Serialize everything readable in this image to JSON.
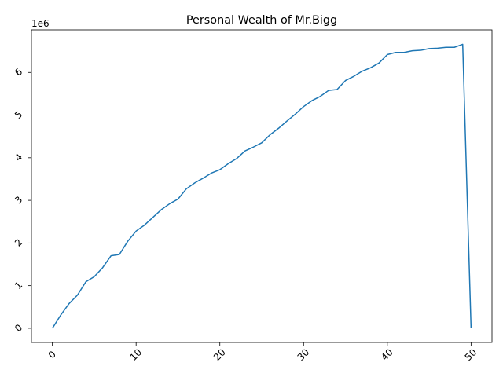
{
  "chart_data": {
    "type": "line",
    "title": "Personal Wealth of Mr.Bigg",
    "xlabel": "",
    "ylabel": "",
    "y_offset_label": "1e6",
    "xlim": [
      -2.5,
      52.5
    ],
    "ylim": [
      -333000,
      7000000
    ],
    "x_ticks": [
      0,
      10,
      20,
      30,
      40,
      50
    ],
    "x_tick_labels": [
      "0",
      "10",
      "20",
      "30",
      "40",
      "50"
    ],
    "y_ticks": [
      0,
      1000000,
      2000000,
      3000000,
      4000000,
      5000000,
      6000000
    ],
    "y_tick_labels": [
      "0",
      "1",
      "2",
      "3",
      "4",
      "5",
      "6"
    ],
    "tick_label_rotation_deg": 45,
    "grid": false,
    "legend": "none",
    "series": [
      {
        "color": "#1f77b4",
        "x": [
          0,
          1,
          2,
          3,
          4,
          5,
          6,
          7,
          8,
          9,
          10,
          11,
          12,
          13,
          14,
          15,
          16,
          17,
          18,
          19,
          20,
          21,
          22,
          23,
          24,
          25,
          26,
          27,
          28,
          29,
          30,
          31,
          32,
          33,
          34,
          35,
          36,
          37,
          38,
          39,
          40,
          41,
          42,
          43,
          44,
          45,
          46,
          47,
          48,
          49,
          50
        ],
        "y": [
          0,
          310000,
          580000,
          780000,
          1090000,
          1210000,
          1420000,
          1700000,
          1730000,
          2040000,
          2280000,
          2420000,
          2600000,
          2780000,
          2920000,
          3030000,
          3270000,
          3410000,
          3520000,
          3640000,
          3720000,
          3860000,
          3980000,
          4160000,
          4250000,
          4350000,
          4540000,
          4690000,
          4860000,
          5020000,
          5200000,
          5340000,
          5440000,
          5580000,
          5600000,
          5810000,
          5910000,
          6030000,
          6110000,
          6220000,
          6420000,
          6470000,
          6470000,
          6510000,
          6520000,
          6560000,
          6570000,
          6590000,
          6590000,
          6660000,
          0
        ]
      }
    ]
  }
}
